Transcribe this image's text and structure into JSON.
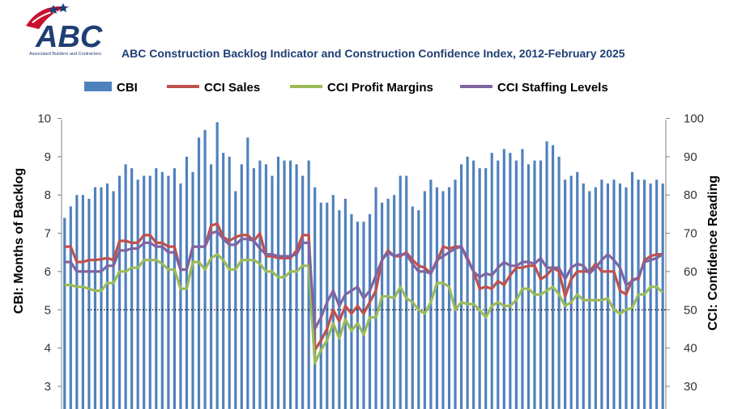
{
  "header": {
    "logo_text": "ABC",
    "logo_subtext": "Associated Builders and Contractors",
    "title": "ABC Construction Backlog Indicator and Construction Confidence Index, 2012-February 2025"
  },
  "colors": {
    "cbi": "#4F81BD",
    "sales": "#C0504D",
    "profit": "#9BBB59",
    "staffing": "#8064A2",
    "logo_red": "#C8102E",
    "logo_blue": "#1F3E74"
  },
  "chart_data": {
    "type": "bar+line",
    "title": "ABC Construction Backlog Indicator and Construction Confidence Index, 2012-February 2025",
    "ylabel_left": "CBI: Months of Backlog",
    "ylabel_right": "CCI: Confidence Reading",
    "ylim_left": [
      2.5,
      10
    ],
    "ylim_right": [
      25,
      100
    ],
    "yticks_left": [
      "3",
      "4",
      "5",
      "6",
      "7",
      "8",
      "9",
      "10"
    ],
    "yticks_right": [
      "30",
      "40",
      "50",
      "60",
      "70",
      "80",
      "90",
      "100"
    ],
    "reference_line": {
      "axis": "right",
      "value": 50,
      "style": "dotted"
    },
    "legend": [
      {
        "key": "cbi",
        "label": "CBI",
        "marker": "bar"
      },
      {
        "key": "sales",
        "label": "CCI Sales",
        "marker": "line"
      },
      {
        "key": "profit",
        "label": "CCI Profit Margins",
        "marker": "line"
      },
      {
        "key": "staffing",
        "label": "CCI Staffing Levels",
        "marker": "line"
      }
    ],
    "series": [
      {
        "name": "CBI",
        "axis": "left",
        "kind": "bar",
        "values": [
          7.4,
          7.7,
          8.0,
          8.0,
          7.9,
          8.2,
          8.2,
          8.3,
          8.1,
          8.5,
          8.8,
          8.7,
          8.4,
          8.5,
          8.5,
          8.7,
          8.6,
          8.5,
          8.7,
          8.3,
          9.0,
          8.6,
          9.5,
          9.7,
          8.8,
          9.9,
          9.1,
          9.0,
          8.1,
          8.8,
          9.5,
          8.7,
          8.9,
          8.8,
          8.5,
          9.0,
          8.9,
          8.9,
          8.8,
          8.5,
          8.9,
          8.2,
          7.8,
          7.8,
          8.0,
          7.6,
          7.9,
          7.5,
          7.3,
          7.3,
          7.5,
          8.2,
          7.8,
          7.9,
          8.0,
          8.5,
          8.5,
          7.7,
          7.6,
          8.1,
          8.4,
          8.2,
          8.1,
          8.2,
          8.4,
          8.8,
          9.0,
          8.9,
          8.7,
          8.7,
          9.1,
          8.9,
          9.2,
          9.1,
          8.9,
          9.2,
          8.8,
          8.9,
          8.9,
          9.4,
          9.3,
          9.0,
          8.4,
          8.5,
          8.6,
          8.3,
          8.1,
          8.2,
          8.4,
          8.3,
          8.4,
          8.3,
          8.2,
          8.6,
          8.4,
          8.4,
          8.3,
          8.4,
          8.3
        ]
      },
      {
        "name": "CCI Sales",
        "axis": "right",
        "kind": "line",
        "values": [
          66.5,
          66.5,
          62.5,
          62.5,
          63,
          63,
          63.2,
          63.5,
          63,
          68,
          68,
          67.5,
          67.5,
          69.5,
          69.5,
          67.5,
          67.5,
          66.5,
          66.5,
          60.5,
          60.5,
          66.5,
          66.5,
          66.5,
          72,
          72.5,
          69,
          68,
          69,
          69.5,
          69.5,
          68,
          70,
          64,
          64,
          63.5,
          63.5,
          63.5,
          65.5,
          69.5,
          69.5,
          39.5,
          42,
          45,
          50,
          47,
          51,
          49,
          51,
          49,
          52,
          55,
          63,
          65.5,
          64,
          64,
          65,
          63,
          61.5,
          61,
          59.5,
          62.5,
          66.5,
          66,
          66.5,
          66.5,
          63.5,
          60,
          55.5,
          56,
          55.5,
          57.5,
          56.5,
          59,
          61,
          61,
          61.5,
          61.5,
          58,
          59,
          61,
          60,
          53.5,
          58,
          60,
          60,
          60,
          62,
          60,
          60,
          60,
          55,
          54,
          58,
          58,
          63,
          64,
          64.5,
          64.5
        ]
      },
      {
        "name": "CCI Profit Margins",
        "axis": "right",
        "kind": "line",
        "values": [
          56.5,
          56.5,
          56,
          56,
          55.5,
          55,
          55,
          57,
          57,
          60,
          60,
          61,
          61,
          63,
          63,
          63,
          62,
          60.5,
          60.5,
          55.5,
          55.5,
          62.5,
          62.5,
          60.5,
          63.5,
          64.5,
          63,
          60.5,
          60.5,
          63,
          63,
          63,
          62,
          60,
          60,
          58.5,
          58.5,
          60,
          60,
          61.5,
          61.5,
          36,
          39.5,
          42,
          46.5,
          42.5,
          47.5,
          44.5,
          46.5,
          43.5,
          48,
          48,
          53.5,
          53.5,
          53,
          56,
          53,
          52,
          50,
          49,
          52,
          57,
          57,
          56,
          50,
          52,
          51.5,
          51.5,
          50,
          48,
          51,
          52,
          51,
          51,
          52.5,
          55.5,
          55.5,
          54,
          54,
          55,
          56,
          54,
          51,
          52,
          54,
          52.5,
          52.5,
          52.5,
          52.5,
          53,
          50,
          49,
          50,
          50.5,
          54,
          54,
          56,
          56,
          54.5
        ]
      },
      {
        "name": "CCI Staffing Levels",
        "axis": "right",
        "kind": "line",
        "values": [
          62.5,
          62.5,
          60,
          60,
          60,
          60,
          60,
          61.5,
          61.5,
          65.5,
          65.5,
          66,
          66,
          67.5,
          67.5,
          66.5,
          66.5,
          65,
          65,
          60.5,
          60.5,
          66.5,
          66.5,
          66.5,
          70,
          70.5,
          68.5,
          67,
          67,
          68.5,
          68.5,
          68,
          66,
          64.5,
          64.5,
          64,
          64,
          64,
          64.5,
          67.5,
          67.5,
          45,
          48,
          52,
          55,
          51,
          54,
          55,
          56,
          53,
          55,
          59,
          63,
          65,
          64,
          64.5,
          64.5,
          62,
          60,
          60,
          59.5,
          63,
          64,
          65,
          66,
          66.5,
          63,
          60,
          58.5,
          59.5,
          59,
          61,
          62.5,
          61.5,
          61.5,
          62.5,
          62.5,
          62,
          63.5,
          61,
          61,
          61,
          58,
          61,
          62,
          61.5,
          59.5,
          61,
          63,
          64.5,
          63,
          61,
          56.5,
          57.5,
          58.5,
          62.5,
          63,
          63.5,
          64.5
        ]
      }
    ]
  }
}
